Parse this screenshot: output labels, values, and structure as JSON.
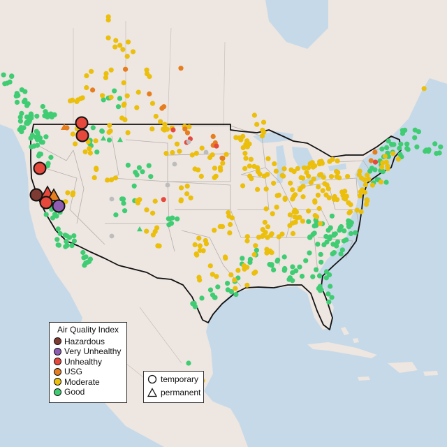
{
  "map": {
    "legend": {
      "title": "Air Quality Index",
      "categories": [
        {
          "label": "Hazardous",
          "color": "#7e3b33"
        },
        {
          "label": "Very Unhealthy",
          "color": "#8e5db1"
        },
        {
          "label": "Unhealthy",
          "color": "#e6483b"
        },
        {
          "label": "USG",
          "color": "#e67d1e"
        },
        {
          "label": "Moderate",
          "color": "#ebbf0c"
        },
        {
          "label": "Good",
          "color": "#3fcc72"
        }
      ]
    },
    "shape_legend": {
      "items": [
        {
          "label": "temporary",
          "shape": "circle"
        },
        {
          "label": "permanent",
          "shape": "triangle"
        }
      ]
    },
    "colors": {
      "water": "#c6d9e8",
      "land": "#ede6e1",
      "us_land": "#eae3df",
      "grey_sensor": "#bdbdbd"
    }
  }
}
